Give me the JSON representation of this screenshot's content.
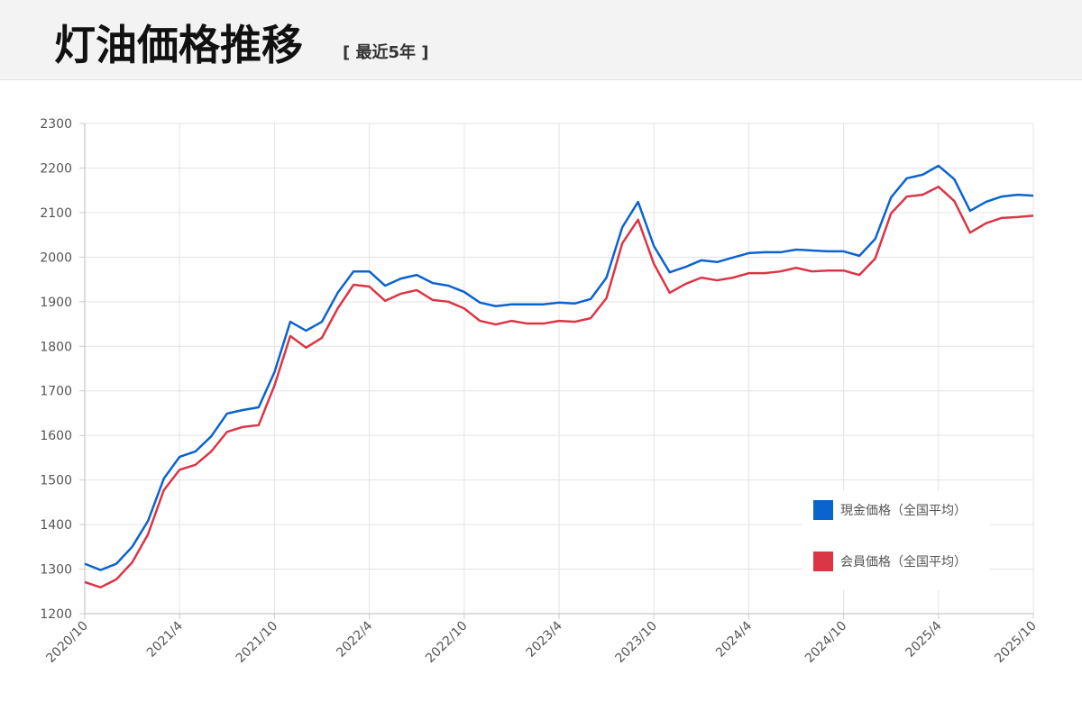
{
  "chart_data": {
    "type": "line",
    "title": "灯油価格推移",
    "subtitle": "[ 最近5年 ]",
    "categories": [
      "2020/10",
      null,
      null,
      null,
      null,
      null,
      "2021/4",
      null,
      null,
      null,
      null,
      null,
      "2021/10",
      null,
      null,
      null,
      null,
      null,
      "2022/4",
      null,
      null,
      null,
      null,
      null,
      "2022/10",
      null,
      null,
      null,
      null,
      null,
      "2023/4",
      null,
      null,
      null,
      null,
      null,
      "2023/10",
      null,
      null,
      null,
      null,
      null,
      "2024/4",
      null,
      null,
      null,
      null,
      null,
      "2024/10",
      null,
      null,
      null,
      null,
      null,
      "2025/4",
      null,
      null,
      null,
      null,
      null,
      "2025/10"
    ],
    "series": [
      {
        "name": "現金価格（全国平均）",
        "color": "#0b63ce",
        "values": [
          1312,
          1298,
          1312,
          1350,
          1408,
          1503,
          1552,
          1564,
          1598,
          1649,
          1657,
          1663,
          1742,
          1855,
          1835,
          1855,
          1920,
          1968,
          1968,
          1936,
          1952,
          1960,
          1942,
          1936,
          1922,
          1898,
          1890,
          1894,
          1894,
          1894,
          1898,
          1896,
          1906,
          1954,
          2067,
          2124,
          2025,
          1966,
          1978,
          1993,
          1989,
          1999,
          2009,
          2011,
          2011,
          2017,
          2015,
          2013,
          2013,
          2003,
          2041,
          2134,
          2177,
          2185,
          2205,
          2175,
          2104,
          2124,
          2136,
          2140,
          2138
        ]
      },
      {
        "name": "会員価格（全国平均）",
        "color": "#dc3545",
        "values": [
          1271,
          1259,
          1277,
          1315,
          1378,
          1477,
          1523,
          1534,
          1564,
          1608,
          1619,
          1623,
          1712,
          1823,
          1797,
          1819,
          1885,
          1938,
          1934,
          1902,
          1918,
          1926,
          1904,
          1900,
          1885,
          1857,
          1849,
          1857,
          1851,
          1851,
          1857,
          1855,
          1863,
          1908,
          2031,
          2084,
          1985,
          1920,
          1940,
          1954,
          1948,
          1954,
          1964,
          1964,
          1968,
          1976,
          1968,
          1970,
          1970,
          1960,
          1997,
          2098,
          2136,
          2140,
          2158,
          2126,
          2055,
          2076,
          2088,
          2090,
          2093
        ]
      }
    ],
    "ylim": [
      1200,
      2300
    ],
    "yticks": [
      1200,
      1300,
      1400,
      1500,
      1600,
      1700,
      1800,
      1900,
      2000,
      2100,
      2200,
      2300
    ],
    "grid": true,
    "legend": "lower-right"
  }
}
